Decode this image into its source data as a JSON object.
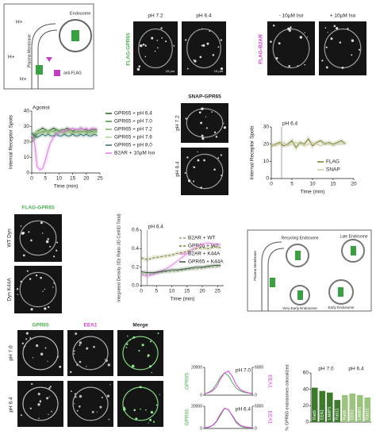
{
  "panels": {
    "a": {
      "labels": [
        "H+",
        "H+",
        "H+",
        "Plasma Membrane",
        "Endosome",
        "anti-FLAG"
      ]
    },
    "b": {
      "title": "FLAG-GPR65",
      "columns": [
        "pH 7.2",
        "pH 6.4"
      ],
      "scale": "10 µm"
    },
    "c": {
      "title": "FLAG-B2AR",
      "columns": [
        "- 10µM Iso",
        "+ 10µM Iso"
      ]
    },
    "e": {
      "title": "SNAP-GPR65",
      "rows": [
        "pH 7.2",
        "pH 6.4"
      ]
    },
    "g": {
      "title": "FLAG-GPR65",
      "rows": [
        "WT Dyn",
        "Dyn K44A"
      ]
    },
    "i": {
      "labels": [
        "Plasma Membrane",
        "Recycling Endosome",
        "Late Endosome",
        "Very-Early Endosome",
        "Early Endosome"
      ]
    },
    "j": {
      "columns": [
        "GPR65",
        "EEA1",
        "Merge"
      ],
      "rows": [
        "pH 7.0",
        "pH 6.4"
      ]
    }
  },
  "chart_data": [
    {
      "type": "line",
      "y_label": "Internal Receptor Spots",
      "x_label": "Time (min)",
      "annotation": {
        "text": "Agonist",
        "x": 0
      },
      "x": [
        0,
        1,
        2,
        3,
        4,
        5,
        6,
        7,
        8,
        9,
        10,
        11,
        12,
        13,
        14,
        15,
        16,
        17,
        18,
        19,
        20,
        21,
        22,
        23,
        24
      ],
      "xlim": [
        0,
        25
      ],
      "xticks": [
        0,
        5,
        10,
        15,
        20,
        25
      ],
      "ylim": [
        0,
        40
      ],
      "yticks": [
        0,
        10,
        20,
        30,
        40
      ],
      "series": [
        {
          "name": "GPR65 + pH 6.4",
          "color": "#2e5a27",
          "values": [
            22,
            24,
            27,
            28,
            29,
            28,
            27,
            28,
            29,
            28,
            27,
            28,
            28,
            29,
            28,
            27,
            28,
            28,
            29,
            28,
            28,
            27,
            28,
            28,
            28
          ]
        },
        {
          "name": "GPR65 + pH 7.0",
          "color": "#4f8f3a",
          "values": [
            20,
            22,
            25,
            26,
            27,
            27,
            26,
            27,
            27,
            28,
            27,
            26,
            27,
            27,
            28,
            27,
            26,
            27,
            27,
            27,
            27,
            26,
            27,
            27,
            27
          ]
        },
        {
          "name": "GPR65 + pH 7.2",
          "color": "#7fb069",
          "values": [
            24,
            25,
            27,
            27,
            26,
            27,
            26,
            27,
            27,
            26,
            26,
            27,
            26,
            27,
            26,
            26,
            27,
            26,
            26,
            27,
            26,
            26,
            26,
            27,
            26
          ]
        },
        {
          "name": "GPR65 + pH 7.6",
          "color": "#a8cf8e",
          "values": [
            25,
            26,
            26,
            27,
            26,
            26,
            27,
            26,
            26,
            25,
            26,
            26,
            25,
            26,
            26,
            25,
            26,
            25,
            26,
            26,
            25,
            26,
            25,
            26,
            26
          ]
        },
        {
          "name": "GPR65 + pH 8.0",
          "color": "#2f6f6a",
          "values": [
            26,
            24,
            23,
            24,
            25,
            24,
            25,
            24,
            24,
            25,
            24,
            24,
            25,
            24,
            24,
            25,
            24,
            24,
            25,
            24,
            25,
            24,
            24,
            25,
            24
          ]
        },
        {
          "name": "B2AR + 10µM Iso",
          "color": "#e07ae0",
          "values": [
            24,
            20,
            4,
            2,
            3,
            8,
            15,
            20,
            23,
            25,
            26,
            27,
            27,
            28,
            28,
            29,
            28,
            28,
            29,
            28,
            29,
            28,
            29,
            29,
            28
          ]
        }
      ]
    },
    {
      "type": "line",
      "y_label": "Internal Receptor Spots",
      "x_label": "Time (min)",
      "annotation": {
        "text": "pH 6.4",
        "x": 2.5
      },
      "x": [
        0,
        1,
        2,
        3,
        4,
        5,
        6,
        7,
        8,
        9,
        10,
        11,
        12,
        13,
        14,
        15,
        16,
        17,
        18
      ],
      "xlim": [
        0,
        20
      ],
      "xticks": [
        0,
        5,
        10,
        15,
        20
      ],
      "ylim": [
        0,
        30
      ],
      "yticks": [
        0,
        10,
        20,
        30
      ],
      "series": [
        {
          "name": "FLAG",
          "color": "#7a7a2a",
          "values": [
            19,
            20,
            21,
            19,
            20,
            22,
            18,
            21,
            20,
            23,
            19,
            21,
            22,
            20,
            21,
            20,
            21,
            22,
            20
          ]
        },
        {
          "name": "SNAP",
          "color": "#c8c8a0",
          "values": [
            20,
            19,
            20,
            21,
            19,
            20,
            21,
            20,
            19,
            20,
            21,
            20,
            19,
            21,
            20,
            19,
            20,
            20,
            21
          ]
        }
      ]
    },
    {
      "type": "line",
      "y_label": "Integrated Density (ID) Ratio (ID Cell/ID Total)",
      "x_label": "Time (min)",
      "annotation": {
        "text": "pH 6.4",
        "x": 2
      },
      "x": [
        0,
        2,
        4,
        6,
        8,
        10,
        12,
        14,
        16,
        18,
        20,
        22,
        24,
        26
      ],
      "xlim": [
        0,
        27
      ],
      "xticks": [
        0,
        5,
        10,
        15,
        20,
        25
      ],
      "ylim": [
        0,
        0.6
      ],
      "yticks": [
        {
          "value": 0,
          "label": "0.0"
        },
        0.2,
        0.4,
        0.6
      ],
      "series": [
        {
          "name": "B2AR + WT",
          "color": "#8aa07a",
          "dash": true,
          "values": [
            0.12,
            0.12,
            0.13,
            0.14,
            0.15,
            0.15,
            0.16,
            0.17,
            0.18,
            0.18,
            0.19,
            0.2,
            0.2,
            0.21
          ]
        },
        {
          "name": "GPR65 + WT",
          "color": "#7a7a2a",
          "dash": true,
          "values": [
            0.3,
            0.28,
            0.3,
            0.31,
            0.32,
            0.33,
            0.35,
            0.36,
            0.38,
            0.4,
            0.41,
            0.4,
            0.42,
            0.41
          ]
        },
        {
          "name": "B2AR + K44A",
          "color": "#e38ee3",
          "values": [
            0.12,
            0.1,
            0.12,
            0.15,
            0.18,
            0.22,
            0.27,
            0.32,
            0.37,
            0.42,
            0.45,
            0.46,
            0.45,
            0.44
          ]
        },
        {
          "name": "GPR65 + K44A",
          "color": "#3b5a3b",
          "values": [
            0.15,
            0.14,
            0.14,
            0.15,
            0.16,
            0.17,
            0.17,
            0.18,
            0.19,
            0.2,
            0.2,
            0.21,
            0.22,
            0.22
          ]
        }
      ]
    },
    {
      "type": "profile",
      "title": "pH 7.0",
      "y_label": "GPR65",
      "y2_label": "EEA1",
      "x": [
        0,
        1,
        2,
        3,
        4,
        5,
        6,
        7,
        8,
        9,
        10,
        11,
        12
      ],
      "ylim": [
        0,
        20000
      ],
      "yticks": [
        0,
        20000
      ],
      "y2lim": [
        0,
        6000
      ],
      "y2ticks": [
        0,
        6000
      ],
      "series": [
        {
          "name": "GPR65",
          "color": "#4caf50",
          "values": [
            1000,
            2000,
            4000,
            8000,
            13000,
            16000,
            14000,
            9000,
            5000,
            3000,
            2000,
            1500,
            1000
          ]
        },
        {
          "name": "EEA1",
          "color": "#e040e0",
          "axis": "y2",
          "values": [
            300,
            500,
            900,
            1800,
            3500,
            4800,
            5200,
            4000,
            2200,
            1200,
            800,
            500,
            400
          ]
        }
      ]
    },
    {
      "type": "profile",
      "title": "pH 6.4",
      "y_label": "GPR65",
      "y2_label": "EEA1",
      "x": [
        0,
        1,
        2,
        3,
        4,
        5,
        6,
        7,
        8,
        9,
        10,
        11,
        12
      ],
      "ylim": [
        0,
        20000
      ],
      "yticks": [
        0,
        20000
      ],
      "y2lim": [
        0,
        6000
      ],
      "y2ticks": [
        0,
        6000
      ],
      "series": [
        {
          "name": "GPR65",
          "color": "#4caf50",
          "values": [
            500,
            1000,
            2500,
            6000,
            12000,
            18000,
            17000,
            11000,
            5000,
            2000,
            1000,
            800,
            600
          ]
        },
        {
          "name": "EEA1",
          "color": "#e040e0",
          "axis": "y2",
          "values": [
            200,
            400,
            800,
            2000,
            4000,
            5500,
            5000,
            3500,
            1800,
            900,
            500,
            300,
            200
          ]
        }
      ]
    },
    {
      "type": "bar",
      "y_label": "% GPR65 endosomes colocalized",
      "groups": [
        "pH 7.0",
        "pH 6.4"
      ],
      "categories": [
        "Rab5",
        "EEA1",
        "LAMP1",
        "Rab11",
        "Rab5",
        "EEA1",
        "LAMP1",
        "Rab11"
      ],
      "values": [
        42,
        38,
        36,
        27,
        33,
        35,
        33,
        30
      ],
      "colors": [
        "#3d7a2e",
        "#3d7a2e",
        "#3d7a2e",
        "#3d7a2e",
        "#9cc47e",
        "#9cc47e",
        "#9cc47e",
        "#9cc47e"
      ],
      "ylim": [
        0,
        60
      ],
      "yticks": [
        0,
        20,
        40,
        60
      ]
    }
  ]
}
